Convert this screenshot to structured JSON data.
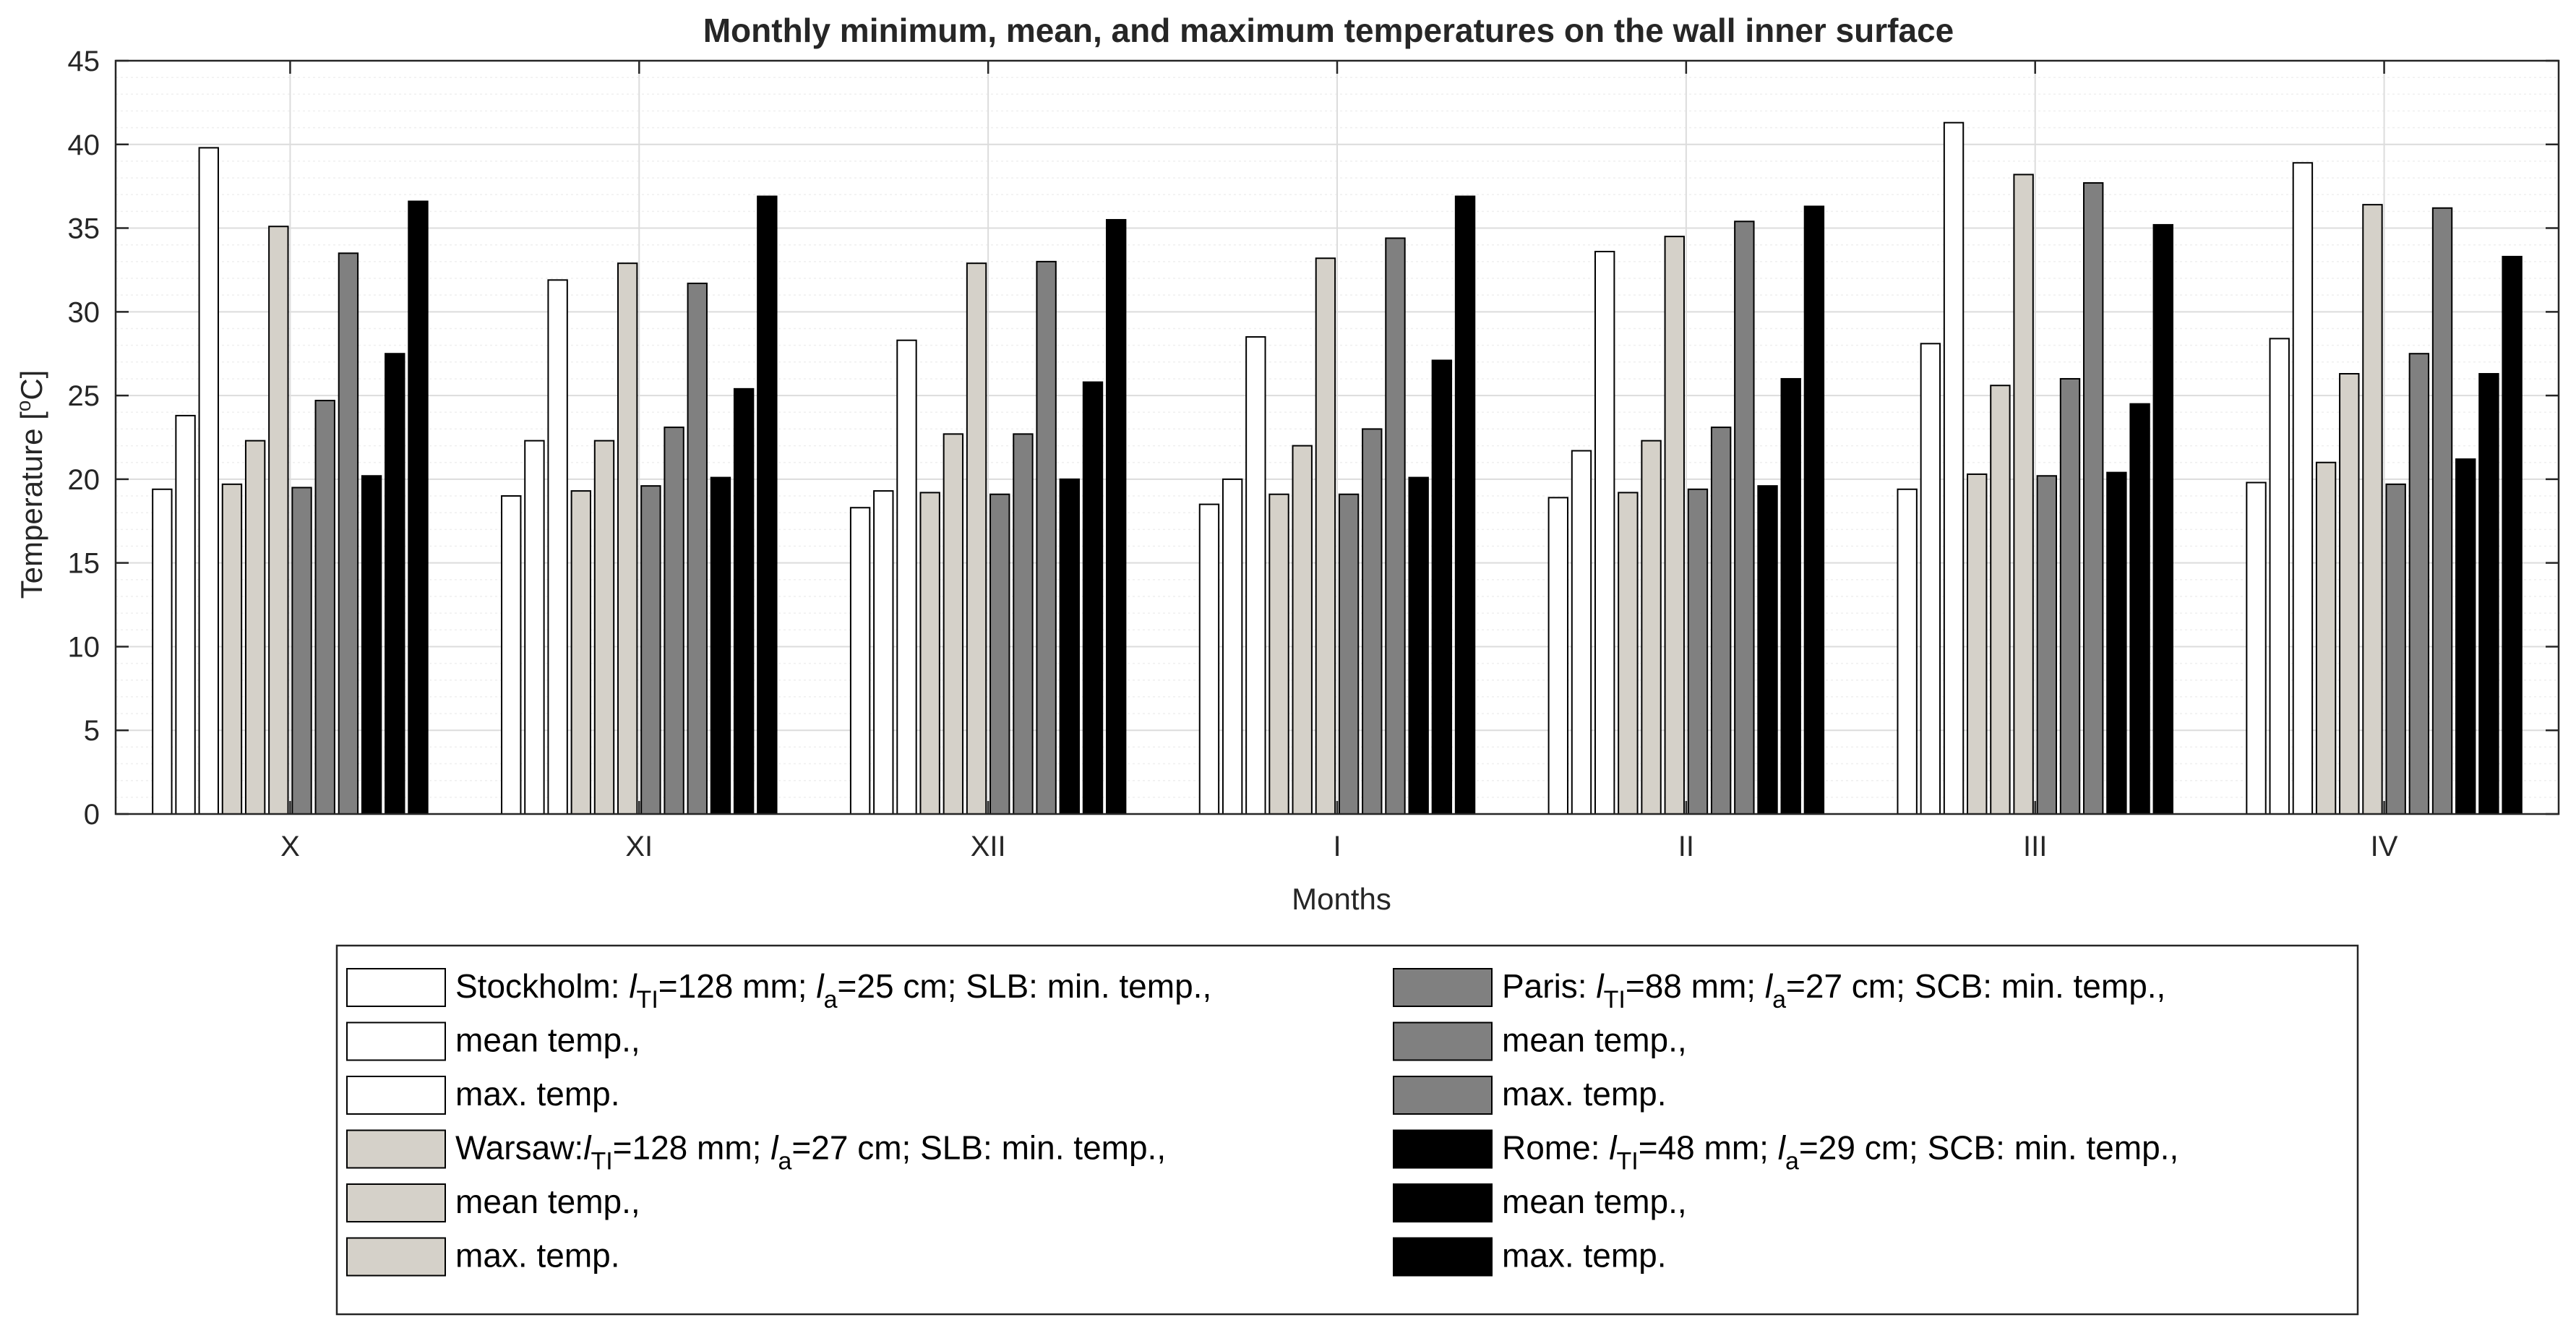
{
  "chart_data": {
    "type": "bar",
    "title": "Monthly minimum, mean, and maximum temperatures on the wall inner surface",
    "xlabel": "Months",
    "ylabel": "Temperature [°C]",
    "ylabel_main": "Temperature [",
    "ylabel_unit_sup": "o",
    "ylabel_unit": "C]",
    "ylim": [
      0,
      45
    ],
    "yticks": [
      0,
      5,
      10,
      15,
      20,
      25,
      30,
      35,
      40,
      45
    ],
    "grid": true,
    "categories": [
      "X",
      "XI",
      "XII",
      "I",
      "II",
      "III",
      "IV"
    ],
    "series": [
      {
        "name": "Stockholm: l_TI=128 mm; l_a=25 cm; SLB: min. temp.",
        "color": "#ffffff",
        "values": [
          19.4,
          19.0,
          18.3,
          18.5,
          18.9,
          19.4,
          19.8
        ]
      },
      {
        "name": "Stockholm mean temp.",
        "color": "#ffffff",
        "values": [
          23.8,
          22.3,
          19.3,
          20.0,
          21.7,
          28.1,
          28.4
        ]
      },
      {
        "name": "Stockholm max. temp.",
        "color": "#ffffff",
        "values": [
          39.8,
          31.9,
          28.3,
          28.5,
          33.6,
          41.3,
          38.9
        ]
      },
      {
        "name": "Warsaw: l_TI=128 mm; l_a=27 cm; SLB: min. temp.",
        "color": "#d5d1c9",
        "values": [
          19.7,
          19.3,
          19.2,
          19.1,
          19.2,
          20.3,
          21.0
        ]
      },
      {
        "name": "Warsaw mean temp.",
        "color": "#d5d1c9",
        "values": [
          22.3,
          22.3,
          22.7,
          22.0,
          22.3,
          25.6,
          26.3
        ]
      },
      {
        "name": "Warsaw max. temp.",
        "color": "#d5d1c9",
        "values": [
          35.1,
          32.9,
          32.9,
          33.2,
          34.5,
          38.2,
          36.4
        ]
      },
      {
        "name": "Paris: l_TI=88 mm; l_a=27 cm; SCB: min. temp.",
        "color": "#808080",
        "values": [
          19.5,
          19.6,
          19.1,
          19.1,
          19.4,
          20.2,
          19.7
        ]
      },
      {
        "name": "Paris mean temp.",
        "color": "#808080",
        "values": [
          24.7,
          23.1,
          22.7,
          23.0,
          23.1,
          26.0,
          27.5
        ]
      },
      {
        "name": "Paris max. temp.",
        "color": "#808080",
        "values": [
          33.5,
          31.7,
          33.0,
          34.4,
          35.4,
          37.7,
          36.2
        ]
      },
      {
        "name": "Rome: l_TI=48 mm; l_a=29 cm; SCB: min. temp.",
        "color": "#000000",
        "values": [
          20.2,
          20.1,
          20.0,
          20.1,
          19.6,
          20.4,
          21.2
        ]
      },
      {
        "name": "Rome mean temp.",
        "color": "#000000",
        "values": [
          27.5,
          25.4,
          25.8,
          27.1,
          26.0,
          24.5,
          26.3
        ]
      },
      {
        "name": "Rome max. temp.",
        "color": "#000000",
        "values": [
          36.6,
          36.9,
          35.5,
          36.9,
          36.3,
          35.2,
          33.3
        ]
      }
    ],
    "legend": {
      "location": "bottom",
      "entries": [
        {
          "color": "#ffffff",
          "parts": [
            {
              "t": "Stockholm: "
            },
            {
              "t": "l",
              "i": true
            },
            {
              "t": "TI",
              "sub": true
            },
            {
              "t": "=128 mm; "
            },
            {
              "t": "l",
              "i": true
            },
            {
              "t": "a",
              "sub": true
            },
            {
              "t": "=25 cm; SLB: min. temp.,"
            }
          ]
        },
        {
          "color": "#ffffff",
          "parts": [
            {
              "t": "mean temp.,"
            }
          ]
        },
        {
          "color": "#ffffff",
          "parts": [
            {
              "t": "max. temp."
            }
          ]
        },
        {
          "color": "#d5d1c9",
          "parts": [
            {
              "t": "Warsaw:"
            },
            {
              "t": "l",
              "i": true
            },
            {
              "t": "TI",
              "sub": true
            },
            {
              "t": "=128 mm; "
            },
            {
              "t": "l",
              "i": true
            },
            {
              "t": "a",
              "sub": true
            },
            {
              "t": "=27 cm; SLB: min. temp.,"
            }
          ]
        },
        {
          "color": "#d5d1c9",
          "parts": [
            {
              "t": "mean temp.,"
            }
          ]
        },
        {
          "color": "#d5d1c9",
          "parts": [
            {
              "t": "max. temp."
            }
          ]
        },
        {
          "color": "#808080",
          "parts": [
            {
              "t": "Paris: "
            },
            {
              "t": "l",
              "i": true
            },
            {
              "t": "TI",
              "sub": true
            },
            {
              "t": "=88 mm; "
            },
            {
              "t": "l",
              "i": true
            },
            {
              "t": "a",
              "sub": true
            },
            {
              "t": "=27 cm; SCB: min. temp.,"
            }
          ]
        },
        {
          "color": "#808080",
          "parts": [
            {
              "t": "mean temp.,"
            }
          ]
        },
        {
          "color": "#808080",
          "parts": [
            {
              "t": "max. temp."
            }
          ]
        },
        {
          "color": "#000000",
          "parts": [
            {
              "t": "Rome: "
            },
            {
              "t": "l",
              "i": true
            },
            {
              "t": "TI",
              "sub": true
            },
            {
              "t": "=48 mm; "
            },
            {
              "t": "l",
              "i": true
            },
            {
              "t": "a",
              "sub": true
            },
            {
              "t": "=29 cm; SCB: min. temp.,"
            }
          ]
        },
        {
          "color": "#000000",
          "parts": [
            {
              "t": "mean temp.,"
            }
          ]
        },
        {
          "color": "#000000",
          "parts": [
            {
              "t": "max. temp."
            }
          ]
        }
      ]
    }
  }
}
